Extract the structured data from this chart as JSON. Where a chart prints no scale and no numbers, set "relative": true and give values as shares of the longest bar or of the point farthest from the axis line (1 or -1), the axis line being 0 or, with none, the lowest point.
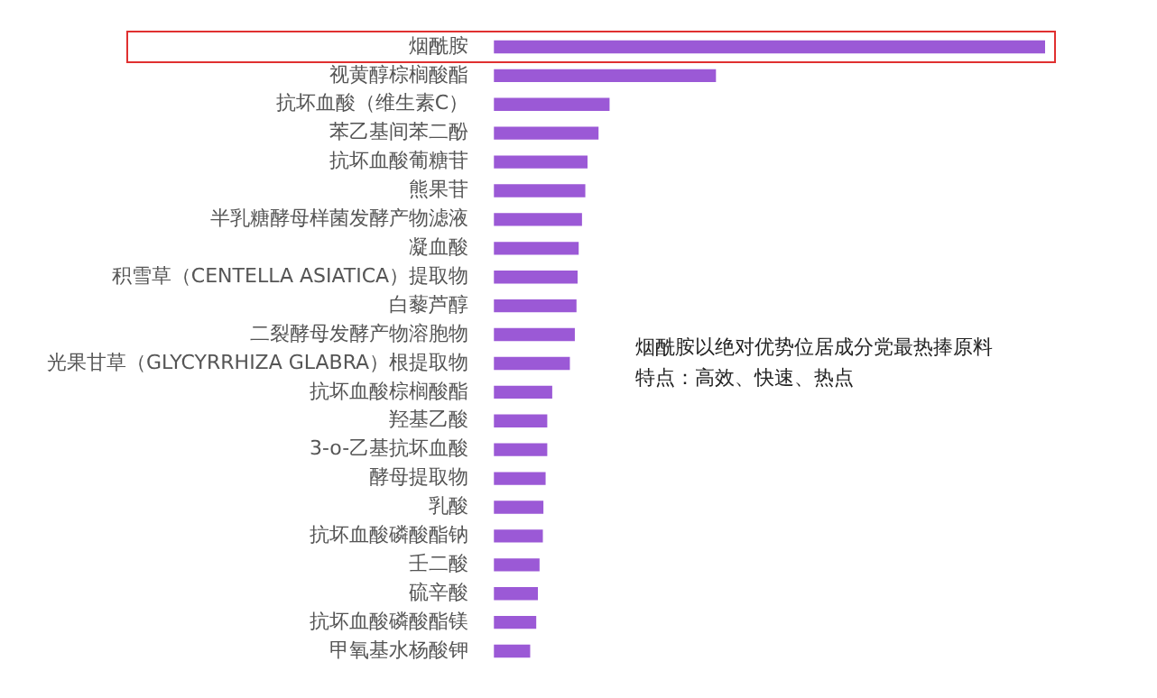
{
  "chart_data": {
    "type": "bar",
    "orientation": "horizontal",
    "relative": true,
    "color": "#9b59d6",
    "categories": [
      "烟酰胺",
      "视黄醇棕榈酸酯",
      "抗坏血酸（维生素C）",
      "苯乙基间苯二酚",
      "抗坏血酸葡糖苷",
      "熊果苷",
      "半乳糖酵母样菌发酵产物滤液",
      "凝血酸",
      "积雪草（CENTELLA ASIATICA）提取物",
      "白藜芦醇",
      "二裂酵母发酵产物溶胞物",
      "光果甘草（GLYCYRRHIZA GLABRA）根提取物",
      "抗坏血酸棕榈酸酯",
      "羟基乙酸",
      "3-o-乙基抗坏血酸",
      "酵母提取物",
      "乳酸",
      "抗坏血酸磷酸酯钠",
      "壬二酸",
      "硫辛酸",
      "抗坏血酸磷酸酯镁",
      "甲氧基水杨酸钾"
    ],
    "values": [
      1,
      0.403,
      0.21,
      0.19,
      0.17,
      0.166,
      0.16,
      0.154,
      0.152,
      0.15,
      0.147,
      0.138,
      0.106,
      0.097,
      0.097,
      0.094,
      0.09,
      0.089,
      0.083,
      0.08,
      0.077,
      0.066
    ],
    "annotations": [
      "烟酰胺以绝对优势位居成分党最热捧原料",
      "特点：高效、快速、热点"
    ],
    "legend": false
  }
}
